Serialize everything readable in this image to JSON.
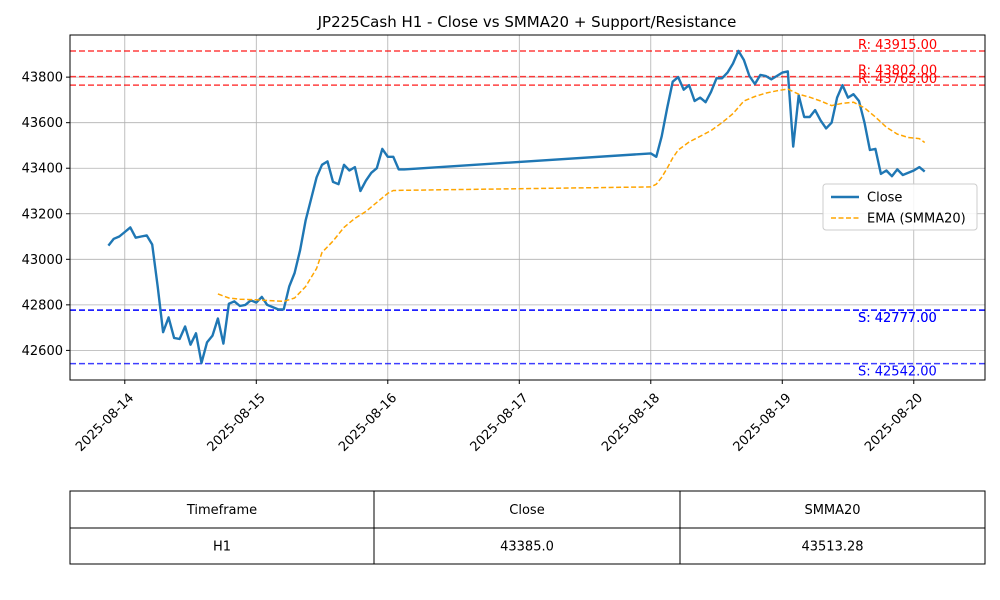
{
  "chart_data": {
    "type": "line",
    "title": "JP225Cash H1 - Close vs SMMA20 + Support/Resistance",
    "ylim": [
      42470,
      43985
    ],
    "xlim": [
      "2025-08-13T14:00",
      "2025-08-20T13:00"
    ],
    "x_ticks": [
      "2025-08-14",
      "2025-08-15",
      "2025-08-16",
      "2025-08-17",
      "2025-08-18",
      "2025-08-19",
      "2025-08-20"
    ],
    "y_ticks": [
      42600,
      42800,
      43000,
      43200,
      43400,
      43600,
      43800
    ],
    "grid": true,
    "legend_position": "center-right",
    "series": [
      {
        "name": "Close",
        "color": "#1f77b4",
        "style": "solid",
        "points": [
          [
            "2025-08-13T21:00",
            43060
          ],
          [
            "2025-08-13T22:00",
            43090
          ],
          [
            "2025-08-13T23:00",
            43100
          ],
          [
            "2025-08-14T00:00",
            43120
          ],
          [
            "2025-08-14T01:00",
            43140
          ],
          [
            "2025-08-14T02:00",
            43095
          ],
          [
            "2025-08-14T03:00",
            43100
          ],
          [
            "2025-08-14T04:00",
            43105
          ],
          [
            "2025-08-14T05:00",
            43065
          ],
          [
            "2025-08-14T06:00",
            42880
          ],
          [
            "2025-08-14T07:00",
            42680
          ],
          [
            "2025-08-14T08:00",
            42745
          ],
          [
            "2025-08-14T09:00",
            42655
          ],
          [
            "2025-08-14T10:00",
            42650
          ],
          [
            "2025-08-14T11:00",
            42705
          ],
          [
            "2025-08-14T12:00",
            42625
          ],
          [
            "2025-08-14T13:00",
            42675
          ],
          [
            "2025-08-14T14:00",
            42545
          ],
          [
            "2025-08-14T15:00",
            42635
          ],
          [
            "2025-08-14T16:00",
            42665
          ],
          [
            "2025-08-14T17:00",
            42740
          ],
          [
            "2025-08-14T18:00",
            42630
          ],
          [
            "2025-08-14T19:00",
            42805
          ],
          [
            "2025-08-14T20:00",
            42815
          ],
          [
            "2025-08-14T21:00",
            42795
          ],
          [
            "2025-08-14T22:00",
            42800
          ],
          [
            "2025-08-14T23:00",
            42820
          ],
          [
            "2025-08-15T00:00",
            42810
          ],
          [
            "2025-08-15T01:00",
            42835
          ],
          [
            "2025-08-15T02:00",
            42800
          ],
          [
            "2025-08-15T03:00",
            42790
          ],
          [
            "2025-08-15T04:00",
            42780
          ],
          [
            "2025-08-15T05:00",
            42780
          ],
          [
            "2025-08-15T06:00",
            42880
          ],
          [
            "2025-08-15T07:00",
            42940
          ],
          [
            "2025-08-15T08:00",
            43040
          ],
          [
            "2025-08-15T09:00",
            43170
          ],
          [
            "2025-08-15T10:00",
            43265
          ],
          [
            "2025-08-15T11:00",
            43360
          ],
          [
            "2025-08-15T12:00",
            43415
          ],
          [
            "2025-08-15T13:00",
            43430
          ],
          [
            "2025-08-15T14:00",
            43340
          ],
          [
            "2025-08-15T15:00",
            43330
          ],
          [
            "2025-08-15T16:00",
            43415
          ],
          [
            "2025-08-15T17:00",
            43390
          ],
          [
            "2025-08-15T18:00",
            43405
          ],
          [
            "2025-08-15T19:00",
            43300
          ],
          [
            "2025-08-15T20:00",
            43345
          ],
          [
            "2025-08-15T21:00",
            43380
          ],
          [
            "2025-08-15T22:00",
            43400
          ],
          [
            "2025-08-15T23:00",
            43485
          ],
          [
            "2025-08-16T00:00",
            43450
          ],
          [
            "2025-08-16T01:00",
            43450
          ],
          [
            "2025-08-16T02:00",
            43395
          ],
          [
            "2025-08-16T03:00",
            43395
          ],
          [
            "2025-08-18T00:00",
            43465
          ],
          [
            "2025-08-18T01:00",
            43450
          ],
          [
            "2025-08-18T02:00",
            43540
          ],
          [
            "2025-08-18T03:00",
            43665
          ],
          [
            "2025-08-18T04:00",
            43780
          ],
          [
            "2025-08-18T05:00",
            43800
          ],
          [
            "2025-08-18T06:00",
            43745
          ],
          [
            "2025-08-18T07:00",
            43765
          ],
          [
            "2025-08-18T08:00",
            43695
          ],
          [
            "2025-08-18T09:00",
            43710
          ],
          [
            "2025-08-18T10:00",
            43690
          ],
          [
            "2025-08-18T11:00",
            43735
          ],
          [
            "2025-08-18T12:00",
            43795
          ],
          [
            "2025-08-18T13:00",
            43795
          ],
          [
            "2025-08-18T14:00",
            43820
          ],
          [
            "2025-08-18T15:00",
            43860
          ],
          [
            "2025-08-18T16:00",
            43915
          ],
          [
            "2025-08-18T17:00",
            43875
          ],
          [
            "2025-08-18T18:00",
            43805
          ],
          [
            "2025-08-18T19:00",
            43770
          ],
          [
            "2025-08-18T20:00",
            43810
          ],
          [
            "2025-08-18T21:00",
            43805
          ],
          [
            "2025-08-18T22:00",
            43790
          ],
          [
            "2025-08-18T23:00",
            43805
          ],
          [
            "2025-08-19T00:00",
            43820
          ],
          [
            "2025-08-19T01:00",
            43825
          ],
          [
            "2025-08-19T02:00",
            43495
          ],
          [
            "2025-08-19T03:00",
            43720
          ],
          [
            "2025-08-19T04:00",
            43625
          ],
          [
            "2025-08-19T05:00",
            43625
          ],
          [
            "2025-08-19T06:00",
            43655
          ],
          [
            "2025-08-19T07:00",
            43610
          ],
          [
            "2025-08-19T08:00",
            43575
          ],
          [
            "2025-08-19T09:00",
            43600
          ],
          [
            "2025-08-19T10:00",
            43710
          ],
          [
            "2025-08-19T11:00",
            43765
          ],
          [
            "2025-08-19T12:00",
            43710
          ],
          [
            "2025-08-19T13:00",
            43725
          ],
          [
            "2025-08-19T14:00",
            43695
          ],
          [
            "2025-08-19T15:00",
            43600
          ],
          [
            "2025-08-19T16:00",
            43480
          ],
          [
            "2025-08-19T17:00",
            43485
          ],
          [
            "2025-08-19T18:00",
            43375
          ],
          [
            "2025-08-19T19:00",
            43390
          ],
          [
            "2025-08-19T20:00",
            43365
          ],
          [
            "2025-08-19T21:00",
            43395
          ],
          [
            "2025-08-19T22:00",
            43370
          ],
          [
            "2025-08-19T23:00",
            43380
          ],
          [
            "2025-08-20T00:00",
            43390
          ],
          [
            "2025-08-20T01:00",
            43405
          ],
          [
            "2025-08-20T02:00",
            43385
          ]
        ]
      },
      {
        "name": "EMA (SMMA20)",
        "color": "#ffa500",
        "style": "dashed",
        "points": [
          [
            "2025-08-14T17:00",
            42848
          ],
          [
            "2025-08-14T19:00",
            42830
          ],
          [
            "2025-08-14T21:00",
            42825
          ],
          [
            "2025-08-15T00:00",
            42822
          ],
          [
            "2025-08-15T03:00",
            42818
          ],
          [
            "2025-08-15T05:00",
            42815
          ],
          [
            "2025-08-15T07:00",
            42830
          ],
          [
            "2025-08-15T09:00",
            42880
          ],
          [
            "2025-08-15T11:00",
            42960
          ],
          [
            "2025-08-15T12:00",
            43030
          ],
          [
            "2025-08-15T14:00",
            43080
          ],
          [
            "2025-08-15T16:00",
            43140
          ],
          [
            "2025-08-15T18:00",
            43180
          ],
          [
            "2025-08-15T20:00",
            43210
          ],
          [
            "2025-08-15T22:00",
            43250
          ],
          [
            "2025-08-16T00:00",
            43290
          ],
          [
            "2025-08-16T01:00",
            43302
          ],
          [
            "2025-08-16T03:00",
            43303
          ],
          [
            "2025-08-18T00:00",
            43318
          ],
          [
            "2025-08-18T01:00",
            43330
          ],
          [
            "2025-08-18T02:00",
            43360
          ],
          [
            "2025-08-18T03:00",
            43400
          ],
          [
            "2025-08-18T04:00",
            43445
          ],
          [
            "2025-08-18T05:00",
            43480
          ],
          [
            "2025-08-18T07:00",
            43515
          ],
          [
            "2025-08-18T09:00",
            43540
          ],
          [
            "2025-08-18T11:00",
            43565
          ],
          [
            "2025-08-18T13:00",
            43600
          ],
          [
            "2025-08-18T15:00",
            43640
          ],
          [
            "2025-08-18T17:00",
            43695
          ],
          [
            "2025-08-18T19:00",
            43715
          ],
          [
            "2025-08-18T21:00",
            43730
          ],
          [
            "2025-08-18T23:00",
            43740
          ],
          [
            "2025-08-19T01:00",
            43748
          ],
          [
            "2025-08-19T03:00",
            43725
          ],
          [
            "2025-08-19T05:00",
            43712
          ],
          [
            "2025-08-19T07:00",
            43695
          ],
          [
            "2025-08-19T09:00",
            43675
          ],
          [
            "2025-08-19T11:00",
            43685
          ],
          [
            "2025-08-19T13:00",
            43690
          ],
          [
            "2025-08-19T15:00",
            43665
          ],
          [
            "2025-08-19T17:00",
            43625
          ],
          [
            "2025-08-19T19:00",
            43580
          ],
          [
            "2025-08-19T21:00",
            43550
          ],
          [
            "2025-08-19T23:00",
            43535
          ],
          [
            "2025-08-20T01:00",
            43530
          ],
          [
            "2025-08-20T02:00",
            43513
          ]
        ]
      }
    ],
    "levels": [
      {
        "kind": "resistance",
        "value": 43915,
        "label": "R: 43915.00",
        "color": "#ff0000"
      },
      {
        "kind": "resistance",
        "value": 43802,
        "label": "R: 43802.00",
        "color": "#ff0000"
      },
      {
        "kind": "resistance",
        "value": 43765,
        "label": "R: 43765.00",
        "color": "#ff0000"
      },
      {
        "kind": "support",
        "value": 42777,
        "label": "S: 42777.00",
        "color": "#0000ff"
      },
      {
        "kind": "support",
        "value": 42777,
        "label": "S: 42777.00",
        "color": "#0000ff"
      },
      {
        "kind": "support",
        "value": 42542,
        "label": "S: 42542.00",
        "color": "#0000ff"
      }
    ]
  },
  "table": {
    "headers": [
      "Timeframe",
      "Close",
      "SMMA20"
    ],
    "rows": [
      [
        "H1",
        "43385.0",
        "43513.28"
      ]
    ]
  }
}
